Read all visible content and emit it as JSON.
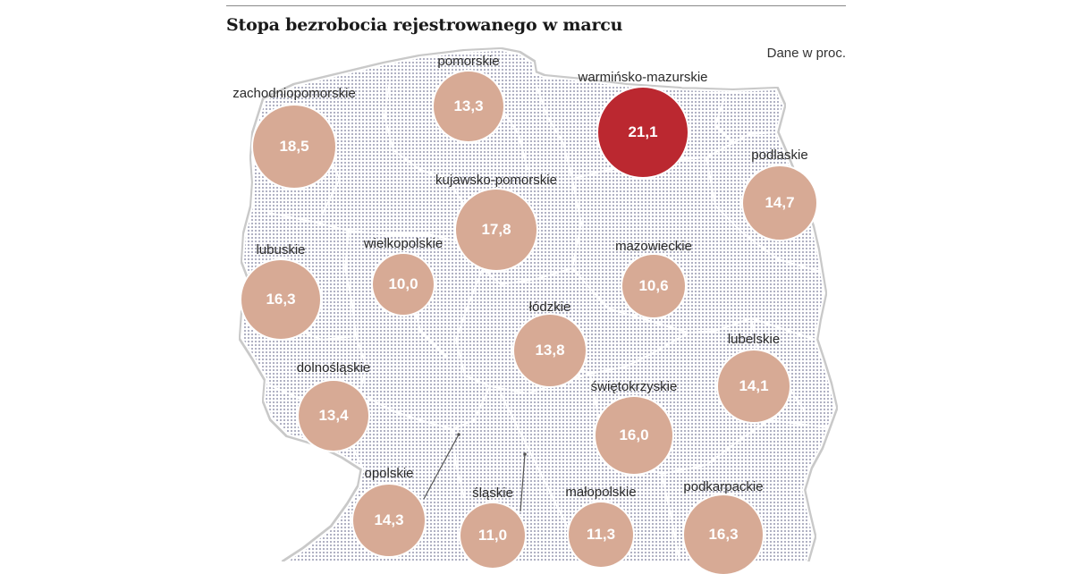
{
  "title": "Stopa bezrobocia rejestrowanego w marcu",
  "unit_note": "Dane w proc.",
  "colors": {
    "normal": "#d7aa95",
    "highlight": "#bb2830",
    "map_dots": "#9a9cb3"
  },
  "chart_data": {
    "type": "choropleth-bubble",
    "title": "Stopa bezrobocia rejestrowanego w marcu",
    "unit": "Dane w proc.",
    "regions": [
      {
        "id": "zachodniopomorskie",
        "label": "zachodniopomorskie",
        "value": "18,5",
        "numeric": 18.5,
        "highlight": false
      },
      {
        "id": "pomorskie",
        "label": "pomorskie",
        "value": "13,3",
        "numeric": 13.3,
        "highlight": false
      },
      {
        "id": "warminsko-mazurskie",
        "label": "warmińsko-mazurskie",
        "value": "21,1",
        "numeric": 21.1,
        "highlight": true
      },
      {
        "id": "podlaskie",
        "label": "podlaskie",
        "value": "14,7",
        "numeric": 14.7,
        "highlight": false
      },
      {
        "id": "kujawsko-pomorskie",
        "label": "kujawsko-pomorskie",
        "value": "17,8",
        "numeric": 17.8,
        "highlight": false
      },
      {
        "id": "lubuskie",
        "label": "lubuskie",
        "value": "16,3",
        "numeric": 16.3,
        "highlight": false
      },
      {
        "id": "wielkopolskie",
        "label": "wielkopolskie",
        "value": "10,0",
        "numeric": 10.0,
        "highlight": false
      },
      {
        "id": "mazowieckie",
        "label": "mazowieckie",
        "value": "10,6",
        "numeric": 10.6,
        "highlight": false
      },
      {
        "id": "lodzkie",
        "label": "łódzkie",
        "value": "13,8",
        "numeric": 13.8,
        "highlight": false
      },
      {
        "id": "lubelskie",
        "label": "lubelskie",
        "value": "14,1",
        "numeric": 14.1,
        "highlight": false
      },
      {
        "id": "dolnoslaskie",
        "label": "dolnośląskie",
        "value": "13,4",
        "numeric": 13.4,
        "highlight": false
      },
      {
        "id": "swietokrzyskie",
        "label": "świętokrzyskie",
        "value": "16,0",
        "numeric": 16.0,
        "highlight": false
      },
      {
        "id": "opolskie",
        "label": "opolskie",
        "value": "14,3",
        "numeric": 14.3,
        "highlight": false
      },
      {
        "id": "slaskie",
        "label": "śląskie",
        "value": "11,0",
        "numeric": 11.0,
        "highlight": false
      },
      {
        "id": "malopolskie",
        "label": "małopolskie",
        "value": "11,3",
        "numeric": 11.3,
        "highlight": false
      },
      {
        "id": "podkarpackie",
        "label": "podkarpackie",
        "value": "16,3",
        "numeric": 16.3,
        "highlight": false
      }
    ]
  }
}
